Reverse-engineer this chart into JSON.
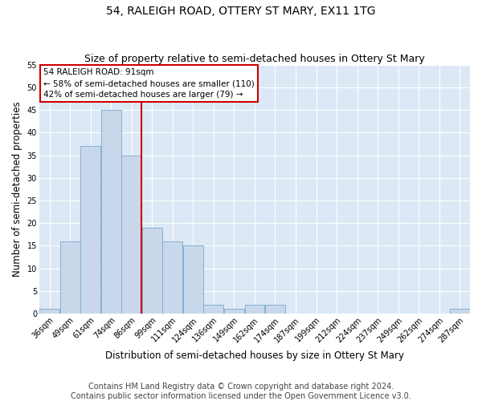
{
  "title": "54, RALEIGH ROAD, OTTERY ST MARY, EX11 1TG",
  "subtitle": "Size of property relative to semi-detached houses in Ottery St Mary",
  "xlabel": "Distribution of semi-detached houses by size in Ottery St Mary",
  "ylabel": "Number of semi-detached properties",
  "categories": [
    "36sqm",
    "49sqm",
    "61sqm",
    "74sqm",
    "86sqm",
    "99sqm",
    "111sqm",
    "124sqm",
    "136sqm",
    "149sqm",
    "162sqm",
    "174sqm",
    "187sqm",
    "199sqm",
    "212sqm",
    "224sqm",
    "237sqm",
    "249sqm",
    "262sqm",
    "274sqm",
    "287sqm"
  ],
  "values": [
    1,
    16,
    37,
    45,
    35,
    19,
    16,
    15,
    2,
    1,
    2,
    2,
    0,
    0,
    0,
    0,
    0,
    0,
    0,
    0,
    1
  ],
  "bar_color": "#c8d8ea",
  "bar_edge_color": "#7aa8d0",
  "ylim_max": 55,
  "yticks": [
    0,
    5,
    10,
    15,
    20,
    25,
    30,
    35,
    40,
    45,
    50,
    55
  ],
  "annotation_line1": "54 RALEIGH ROAD: 91sqm",
  "annotation_line2": "← 58% of semi-detached houses are smaller (110)",
  "annotation_line3": "42% of semi-detached houses are larger (79) →",
  "vline_color": "#cc0000",
  "annotation_box_edge_color": "#cc0000",
  "plot_background": "#dce8f5",
  "title_fontsize": 10,
  "subtitle_fontsize": 9,
  "xlabel_fontsize": 8.5,
  "ylabel_fontsize": 8.5,
  "footer_fontsize": 7,
  "tick_fontsize": 7,
  "annotation_fontsize": 7.5,
  "footer_line1": "Contains HM Land Registry data © Crown copyright and database right 2024.",
  "footer_line2": "Contains public sector information licensed under the Open Government Licence v3.0."
}
